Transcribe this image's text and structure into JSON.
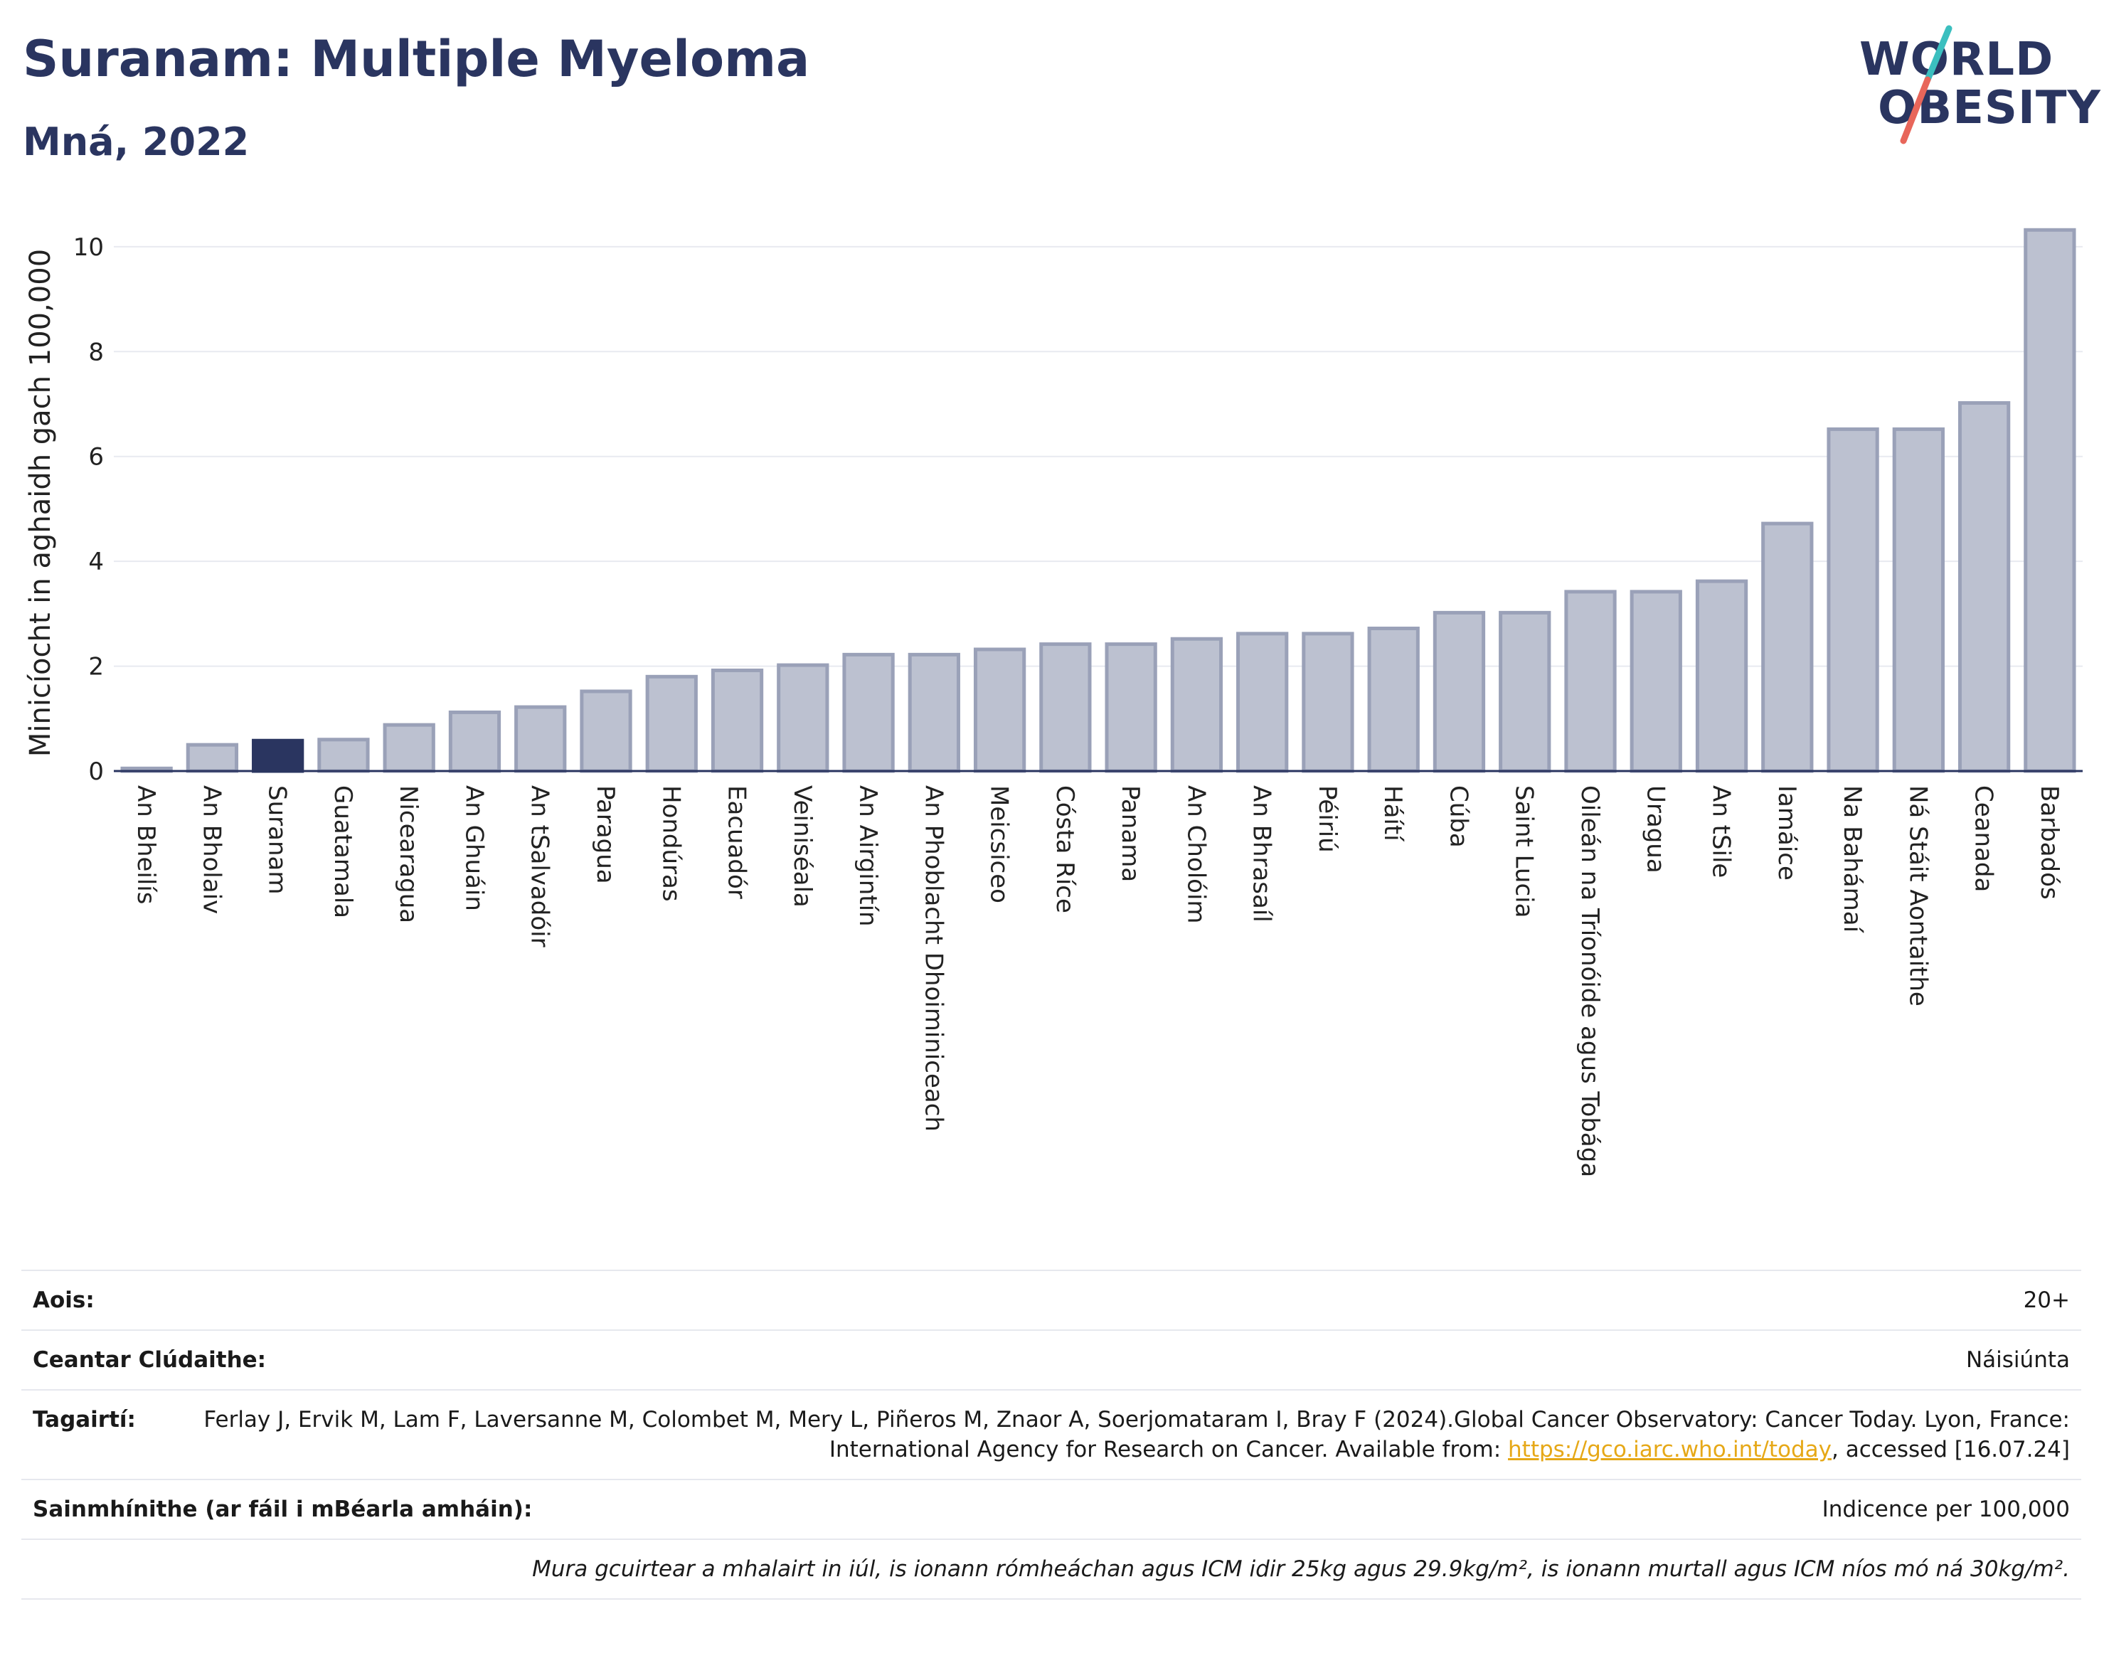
{
  "header": {
    "title": "Suranam: Multiple Myeloma",
    "subtitle": "Mná, 2022"
  },
  "logo": {
    "line1": "WORLD",
    "line2": "OBESITY",
    "colors": {
      "navy": "#2a3560",
      "teal": "#3bbfbf",
      "coral": "#e8665a"
    }
  },
  "chart_data": {
    "type": "bar",
    "ylabel": "Minicíocht in aghaidh gach 100,000",
    "ylim": [
      0,
      10.5
    ],
    "yticks": [
      0,
      2,
      4,
      6,
      8,
      10
    ],
    "grid": true,
    "highlight_category": "Suranam",
    "colors": {
      "bar": "#bcc1d0",
      "bar_border": "#9aa1b8",
      "highlight": "#2a3560"
    },
    "categories": [
      "An Bheilís",
      "An Bholaiv",
      "Suranam",
      "Guatamala",
      "Nicearagua",
      "An Ghuáin",
      "An tSalvadóir",
      "Paragua",
      "Hondúras",
      "Eacuadór",
      "Veiniséala",
      "An Airgintín",
      "An Phoblacht Dhoiminiceach",
      "Meicsiceo",
      "Cósta Ríce",
      "Panama",
      "An Cholóim",
      "An Bhrasaíl",
      "Péiriú",
      "Háítí",
      "Cúba",
      "Saint Lucia",
      "Oileán na Tríonóide agus Tobága",
      "Uragua",
      "An tSile",
      "Iamáice",
      "Na Bahámaí",
      "Ná Stáit Aontaithe",
      "Ceanada",
      "Barbadós"
    ],
    "values": [
      0.05,
      0.5,
      0.58,
      0.6,
      0.88,
      1.12,
      1.22,
      1.52,
      1.8,
      1.92,
      2.02,
      2.22,
      2.22,
      2.32,
      2.42,
      2.42,
      2.52,
      2.62,
      2.62,
      2.72,
      3.02,
      3.02,
      3.42,
      3.42,
      3.62,
      4.72,
      6.52,
      6.52,
      7.02,
      10.32
    ]
  },
  "meta": {
    "age_label": "Aois:",
    "age_value": "20+",
    "area_label": "Ceantar Clúdaithe:",
    "area_value": "Náisiúnta",
    "refs_label": "Tagairtí:",
    "refs_text1": "Ferlay J, Ervik M, Lam F, Laversanne M, Colombet M, Mery L, Piñeros M, Znaor A, Soerjomataram I, Bray F (2024).Global Cancer Observatory: Cancer Today. Lyon, France: International Agency for Research on Cancer. Available from: ",
    "refs_link": "https://gco.iarc.who.int/today",
    "refs_text2": ", accessed [16.07.24]",
    "defs_label": "Sainmhínithe (ar fáil i mBéarla amháin):",
    "defs_value": "Indicence per 100,000",
    "note": "Mura gcuirtear a mhalairt in iúl, is ionann rómheáchan agus ICM idir 25kg agus 29.9kg/m², is ionann murtall agus ICM níos mó ná 30kg/m²."
  }
}
